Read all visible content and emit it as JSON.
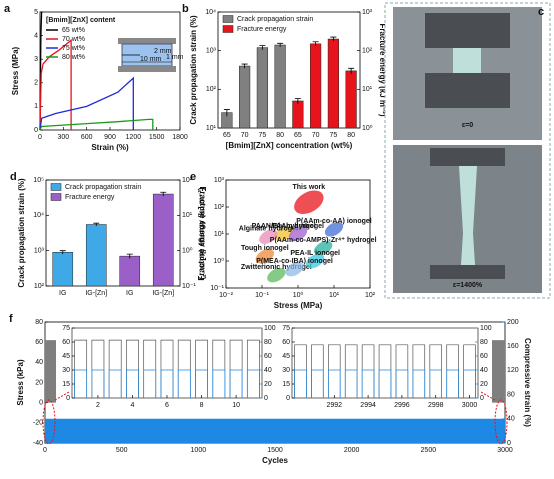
{
  "chart_data": [
    {
      "type": "line",
      "panel": "a",
      "xlabel": "Strain (%)",
      "ylabel": "Stress (MPa)",
      "xlim": [
        0,
        1800
      ],
      "xticks": [
        0,
        300,
        600,
        900,
        1200,
        1500,
        1800
      ],
      "ylim": [
        0,
        5
      ],
      "yticks": [
        0,
        1,
        2,
        3,
        4,
        5
      ],
      "legend_title": "[Bmim][ZnX] content",
      "legend": "upper left",
      "series": [
        {
          "name": "65 wt%",
          "color": "#000000",
          "x": [
            0,
            5,
            12,
            20
          ],
          "values": [
            0,
            2,
            4,
            5
          ]
        },
        {
          "name": "70 wt%",
          "color": "#e8141c",
          "x": [
            0,
            15,
            40,
            120,
            250,
            400,
            400
          ],
          "values": [
            0,
            2.4,
            2.8,
            3.1,
            3.4,
            3.8,
            0
          ]
        },
        {
          "name": "75 wt%",
          "color": "#1f2ad6",
          "x": [
            0,
            20,
            200,
            600,
            1000,
            1200,
            1200
          ],
          "values": [
            0,
            0.5,
            0.7,
            1.0,
            1.6,
            2.2,
            0
          ]
        },
        {
          "name": "80 wt%",
          "color": "#1a9a1a",
          "x": [
            0,
            20,
            500,
            1000,
            1400,
            1450,
            1450
          ],
          "values": [
            0,
            0.15,
            0.25,
            0.35,
            0.45,
            0.45,
            0
          ]
        }
      ],
      "annotations": [
        "2 mm",
        "1 mm",
        "10 mm"
      ]
    },
    {
      "type": "bar",
      "panel": "b",
      "xlabel": "[Bmim][ZnX] concentration (wt%)",
      "ylabel": "Crack propagation strain (%)",
      "y2label": "Fracture energy (kJ m⁻²)",
      "ylog": true,
      "ylim": [
        10,
        10000
      ],
      "yticks": [
        {
          "value": 10,
          "label": "10¹"
        },
        {
          "value": 100,
          "label": "10²"
        },
        {
          "value": 1000,
          "label": "10³"
        },
        {
          "value": 10000,
          "label": "10⁴"
        }
      ],
      "y2lim": [
        1,
        1000
      ],
      "y2ticks": [
        {
          "value": 1,
          "label": "10⁰"
        },
        {
          "value": 10,
          "label": "10¹"
        },
        {
          "value": 100,
          "label": "10²"
        },
        {
          "value": 1000,
          "label": "10³"
        }
      ],
      "categories": [
        "65",
        "70",
        "75",
        "80",
        "65",
        "70",
        "75",
        "80"
      ],
      "legend": "upper left",
      "series": [
        {
          "name": "Crack propagation strain",
          "color": "#808080",
          "values": [
            25,
            400,
            1200,
            1400,
            null,
            null,
            null,
            null
          ],
          "errors": [
            5,
            50,
            150,
            150,
            null,
            null,
            null,
            null
          ]
        },
        {
          "name": "Fracture energy",
          "color": "#e8141c",
          "axis": "y2",
          "values": [
            null,
            null,
            null,
            null,
            5,
            150,
            200,
            30
          ],
          "errors": [
            null,
            null,
            null,
            null,
            0.8,
            20,
            25,
            5
          ]
        }
      ]
    },
    {
      "type": "photo",
      "panel": "c",
      "labels": [
        "ε=0",
        "ε=1400%"
      ]
    },
    {
      "type": "bar",
      "panel": "d",
      "ylabel": "Crack propagation strain (%)",
      "y2label": "Fracture energy (kJ m⁻²)",
      "ylog": true,
      "ylim": [
        100,
        100000
      ],
      "yticks": [
        {
          "value": 100,
          "label": "10²"
        },
        {
          "value": 1000,
          "label": "10³"
        },
        {
          "value": 10000,
          "label": "10⁴"
        },
        {
          "value": 100000,
          "label": "10⁵"
        }
      ],
      "y2lim": [
        0.1,
        100
      ],
      "y2ticks": [
        {
          "value": 0.1,
          "label": "10⁻¹"
        },
        {
          "value": 1,
          "label": "10⁰"
        },
        {
          "value": 10,
          "label": "10¹"
        },
        {
          "value": 100,
          "label": "10²"
        }
      ],
      "categories": [
        "IG",
        "IG-[Zn]",
        "IG",
        "IG-[Zn]"
      ],
      "legend": "upper left",
      "series": [
        {
          "name": "Crack propagation strain",
          "color": "#3fa9e8",
          "values": [
            900,
            5500,
            null,
            null
          ],
          "errors": [
            100,
            500,
            null,
            null
          ]
        },
        {
          "name": "Fracture energy",
          "color": "#9b5fc8",
          "axis": "y2",
          "values": [
            null,
            null,
            0.7,
            40
          ],
          "errors": [
            null,
            null,
            0.1,
            5
          ]
        }
      ]
    },
    {
      "type": "scatter",
      "panel": "e",
      "xlabel": "Stress (MPa)",
      "ylabel": "Fracture energy (kJ m⁻²)",
      "xlog": true,
      "ylog": true,
      "xlim": [
        0.01,
        100
      ],
      "xticks": [
        {
          "value": 0.01,
          "label": "10⁻²"
        },
        {
          "value": 0.1,
          "label": "10⁻¹"
        },
        {
          "value": 1,
          "label": "10⁰"
        },
        {
          "value": 10,
          "label": "10¹"
        },
        {
          "value": 100,
          "label": "10²"
        }
      ],
      "ylim": [
        0.1,
        1000
      ],
      "yticks": [
        {
          "value": 0.1,
          "label": "10⁻¹"
        },
        {
          "value": 1,
          "label": "10⁰"
        },
        {
          "value": 10,
          "label": "10¹"
        },
        {
          "value": 100,
          "label": "10²"
        },
        {
          "value": 1000,
          "label": "10³"
        }
      ],
      "points": [
        {
          "label": "This work",
          "x": 2,
          "y": 150,
          "color": "#e8141c"
        },
        {
          "label": "PAAN/Gly hydrogel",
          "x": 0.4,
          "y": 10,
          "color": "#f2c230"
        },
        {
          "label": "Alginate hydrogel",
          "x": 0.15,
          "y": 8,
          "color": "#e88bb8"
        },
        {
          "label": "Tough ionogel",
          "x": 0.12,
          "y": 1.5,
          "color": "#f08a3c"
        },
        {
          "label": "Zwitterionic hydrogel",
          "x": 0.25,
          "y": 0.3,
          "color": "#5cb85c"
        },
        {
          "label": "PAAm hydrogel",
          "x": 1,
          "y": 10,
          "color": "#a05cd6"
        },
        {
          "label": "P(AAm-co-AA) ionogel",
          "x": 10,
          "y": 15,
          "color": "#3f6fd6"
        },
        {
          "label": "P(AAm-co-AMPS)-Zr⁴⁺ hydrogel",
          "x": 5,
          "y": 3,
          "color": "#2ab0a0"
        },
        {
          "label": "PEA-IL ionogel",
          "x": 3,
          "y": 1,
          "color": "#35c8e0"
        },
        {
          "label": "P(MEA-co-IBA) ionogel",
          "x": 0.8,
          "y": 0.5,
          "color": "#8fb8e8"
        }
      ]
    },
    {
      "type": "area",
      "panel": "f",
      "xlabel": "Cycles",
      "ylabel": "Stress (kPa)",
      "y2label": "Compressive strain (%)",
      "x": [
        0,
        3000
      ],
      "xlim": [
        0,
        3000
      ],
      "xticks": [
        0,
        500,
        1000,
        1500,
        2000,
        2500,
        3000
      ],
      "ylim": [
        -40,
        80
      ],
      "yticks": [
        -40,
        -20,
        0,
        20,
        40,
        60,
        80
      ],
      "y2lim": [
        0,
        200
      ],
      "y2ticks": [
        0,
        40,
        80,
        120,
        160,
        200
      ],
      "series": [
        {
          "color": "#7f7f7f",
          "values": [
            62,
            62
          ]
        },
        {
          "color": "#1e88e5",
          "axis": "y2",
          "values": [
            40,
            40
          ]
        }
      ],
      "insets": [
        {
          "x": [
            1,
            2,
            3,
            4,
            5,
            6,
            7,
            8,
            9,
            10,
            11
          ],
          "xlim": [
            0.5,
            11.5
          ],
          "xticks": [
            2,
            4,
            6,
            8,
            10
          ],
          "ylim": [
            0,
            75
          ],
          "yticks": [
            0,
            15,
            30,
            45,
            60,
            75
          ],
          "y2lim": [
            0,
            100
          ],
          "y2ticks": [
            0,
            20,
            40,
            60,
            80,
            100
          ],
          "series": [
            {
              "color": "#555555",
              "values": [
                62,
                62,
                62,
                62,
                62,
                62,
                62,
                62,
                62,
                62,
                62
              ]
            },
            {
              "color": "#1e88e5",
              "axis": "y2",
              "values": [
                40,
                40,
                40,
                40,
                40,
                40,
                40,
                40,
                40,
                40,
                40
              ]
            }
          ]
        },
        {
          "x": [
            2990,
            2991,
            2992,
            2993,
            2994,
            2995,
            2996,
            2997,
            2998,
            2999,
            3000
          ],
          "xlim": [
            2989.5,
            3000.5
          ],
          "xticks": [
            2992,
            2994,
            2996,
            2998,
            3000
          ],
          "ylim": [
            0,
            75
          ],
          "yticks": [
            0,
            15,
            30,
            45,
            60,
            75
          ],
          "y2lim": [
            0,
            100
          ],
          "y2ticks": [
            0,
            20,
            40,
            60,
            80,
            100
          ],
          "series": [
            {
              "color": "#555555",
              "values": [
                57,
                57,
                57,
                57,
                57,
                57,
                57,
                57,
                57,
                57,
                57
              ]
            },
            {
              "color": "#1e88e5",
              "axis": "y2",
              "values": [
                40,
                40,
                40,
                40,
                40,
                40,
                40,
                40,
                40,
                40,
                40
              ]
            }
          ]
        }
      ]
    }
  ]
}
